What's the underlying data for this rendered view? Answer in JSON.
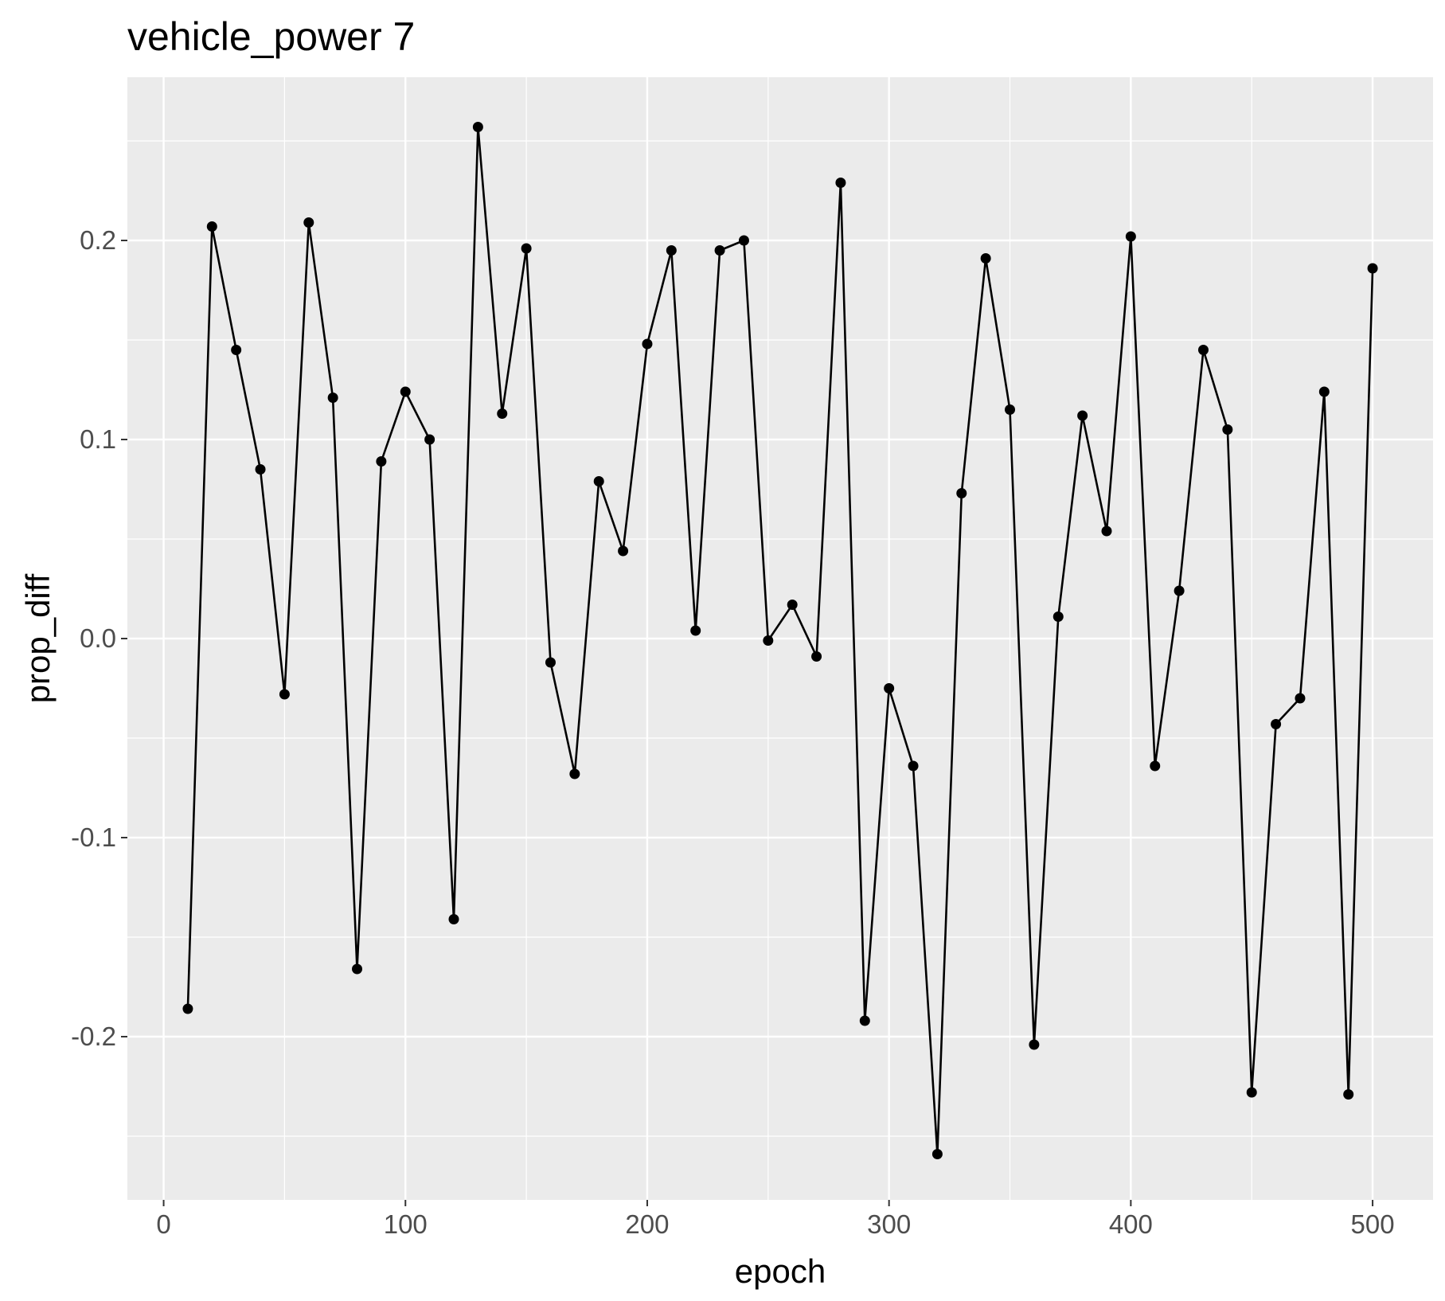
{
  "chart_data": {
    "type": "line",
    "title": "vehicle_power 7",
    "xlabel": "epoch",
    "ylabel": "prop_diff",
    "xlim": [
      -15,
      525
    ],
    "ylim": [
      -0.282,
      0.282
    ],
    "x_ticks": [
      0,
      100,
      200,
      300,
      400,
      500
    ],
    "x_tick_labels": [
      "0",
      "100",
      "200",
      "300",
      "400",
      "500"
    ],
    "y_ticks": [
      -0.2,
      -0.1,
      0.0,
      0.1,
      0.2
    ],
    "y_tick_labels": [
      "-0.2",
      "-0.1",
      "0.0",
      "0.1",
      "0.2"
    ],
    "grid": true,
    "legend": "none",
    "colors": {
      "panel": "#ebebeb",
      "grid": "#ffffff",
      "line": "#000000",
      "point": "#000000",
      "tick_text": "#4d4d4d"
    },
    "series": [
      {
        "x": [
          10,
          20,
          30,
          40,
          50,
          60,
          70,
          80,
          90,
          100,
          110,
          120,
          130,
          140,
          150,
          160,
          170,
          180,
          190,
          200,
          210,
          220,
          230,
          240,
          250,
          260,
          270,
          280,
          290,
          300,
          310,
          320,
          330,
          340,
          350,
          360,
          370,
          380,
          390,
          400,
          410,
          420,
          430,
          440,
          450,
          460,
          470,
          480,
          490,
          500
        ],
        "y": [
          -0.186,
          0.207,
          0.145,
          0.085,
          -0.028,
          0.209,
          0.121,
          -0.166,
          0.089,
          0.124,
          0.1,
          -0.141,
          0.257,
          0.113,
          0.196,
          -0.012,
          -0.068,
          0.079,
          0.044,
          0.148,
          0.195,
          0.004,
          0.195,
          0.2,
          -0.001,
          0.017,
          -0.009,
          0.229,
          -0.192,
          -0.025,
          -0.064,
          -0.259,
          0.073,
          0.191,
          0.115,
          -0.204,
          0.011,
          0.112,
          0.054,
          0.202,
          -0.064,
          0.024,
          0.145,
          0.105,
          -0.228,
          -0.043,
          -0.03,
          0.124,
          -0.229,
          0.186
        ]
      }
    ]
  }
}
